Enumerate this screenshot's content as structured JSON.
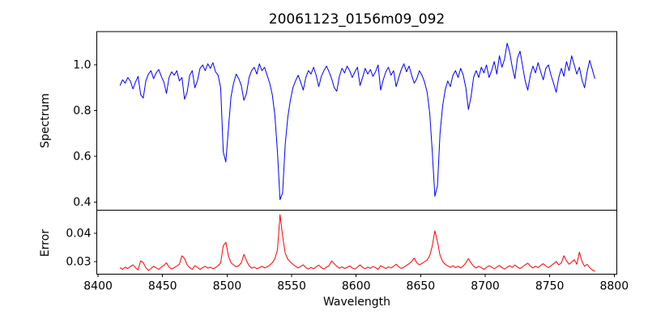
{
  "chart_data": {
    "type": "line",
    "title": "20061123_0156m09_092",
    "xlabel": "Wavelength",
    "grid": false,
    "legend": "none",
    "x_start": 8417,
    "x_step": 2,
    "xlim": [
      8399,
      8802
    ],
    "xticks": [
      8400,
      8450,
      8500,
      8550,
      8600,
      8650,
      8700,
      8750,
      8800
    ],
    "absorption_line_centers": [
      8498,
      8542,
      8662
    ],
    "panels": [
      {
        "name": "spectrum",
        "ylabel": "Spectrum",
        "color": "#0000ff",
        "ylim": [
          0.364,
          1.146
        ],
        "yticks": [
          "0.4",
          "0.6",
          "0.8",
          "1.0"
        ],
        "values": [
          0.91,
          0.935,
          0.92,
          0.945,
          0.93,
          0.895,
          0.925,
          0.95,
          0.87,
          0.855,
          0.93,
          0.96,
          0.975,
          0.94,
          0.965,
          0.98,
          0.95,
          0.925,
          0.875,
          0.945,
          0.97,
          0.955,
          0.975,
          0.93,
          0.945,
          0.85,
          0.88,
          0.955,
          0.975,
          0.9,
          0.93,
          0.985,
          1.0,
          0.975,
          1.005,
          0.985,
          1.01,
          0.97,
          0.955,
          0.9,
          0.62,
          0.575,
          0.72,
          0.86,
          0.92,
          0.96,
          0.94,
          0.91,
          0.845,
          0.875,
          0.945,
          0.975,
          0.99,
          0.96,
          1.005,
          0.975,
          0.99,
          0.955,
          0.92,
          0.87,
          0.78,
          0.62,
          0.41,
          0.44,
          0.65,
          0.77,
          0.845,
          0.9,
          0.93,
          0.955,
          0.925,
          0.89,
          0.945,
          0.975,
          0.96,
          0.99,
          0.955,
          0.905,
          0.95,
          0.975,
          0.995,
          0.97,
          0.94,
          0.9,
          0.885,
          0.95,
          0.985,
          0.965,
          0.995,
          0.975,
          0.945,
          0.97,
          0.99,
          0.91,
          0.945,
          0.985,
          0.96,
          0.98,
          0.95,
          0.97,
          1.0,
          0.89,
          0.935,
          0.97,
          0.99,
          0.955,
          0.975,
          0.905,
          0.945,
          0.98,
          1.005,
          0.97,
          0.995,
          0.955,
          0.92,
          0.94,
          0.975,
          0.955,
          0.925,
          0.88,
          0.79,
          0.62,
          0.425,
          0.47,
          0.7,
          0.82,
          0.89,
          0.93,
          0.905,
          0.955,
          0.975,
          0.945,
          0.985,
          0.955,
          0.9,
          0.805,
          0.86,
          0.945,
          0.975,
          0.945,
          0.99,
          0.965,
          1.0,
          0.945,
          0.975,
          1.015,
          0.96,
          1.04,
          0.99,
          1.025,
          1.095,
          1.055,
          0.99,
          0.94,
          1.03,
          1.06,
          0.995,
          0.93,
          0.89,
          0.955,
          0.995,
          0.965,
          1.01,
          0.97,
          0.935,
          0.985,
          1.0,
          0.955,
          0.92,
          0.88,
          0.945,
          0.985,
          0.95,
          1.015,
          0.975,
          1.04,
          1.0,
          0.96,
          0.99,
          0.935,
          0.9,
          0.97,
          1.02,
          0.98,
          0.94
        ]
      },
      {
        "name": "error",
        "ylabel": "Error",
        "color": "#ff0000",
        "ylim": [
          0.0255,
          0.0481
        ],
        "yticks": [
          "0.03",
          "0.04"
        ],
        "values": [
          0.0278,
          0.0272,
          0.028,
          0.0275,
          0.0282,
          0.0288,
          0.0278,
          0.027,
          0.0302,
          0.0296,
          0.0278,
          0.0268,
          0.0275,
          0.0283,
          0.0277,
          0.0272,
          0.028,
          0.0286,
          0.0295,
          0.028,
          0.0273,
          0.0278,
          0.0284,
          0.029,
          0.032,
          0.031,
          0.0288,
          0.0278,
          0.0272,
          0.0285,
          0.0279,
          0.0272,
          0.0278,
          0.0283,
          0.0276,
          0.028,
          0.0274,
          0.0278,
          0.0285,
          0.0295,
          0.0355,
          0.0368,
          0.032,
          0.0295,
          0.0288,
          0.0281,
          0.0285,
          0.0295,
          0.0325,
          0.0303,
          0.0285,
          0.0276,
          0.028,
          0.0274,
          0.0278,
          0.0283,
          0.0277,
          0.0281,
          0.0287,
          0.0295,
          0.031,
          0.034,
          0.0465,
          0.039,
          0.033,
          0.0308,
          0.0298,
          0.029,
          0.0283,
          0.0277,
          0.0282,
          0.0288,
          0.0278,
          0.0273,
          0.0279,
          0.0274,
          0.0281,
          0.0287,
          0.0278,
          0.0273,
          0.028,
          0.0285,
          0.0302,
          0.0292,
          0.0283,
          0.0276,
          0.0281,
          0.0275,
          0.0279,
          0.0284,
          0.0277,
          0.0273,
          0.028,
          0.0288,
          0.0279,
          0.0274,
          0.028,
          0.0276,
          0.0282,
          0.0278,
          0.0272,
          0.0285,
          0.028,
          0.0275,
          0.0281,
          0.0277,
          0.0283,
          0.029,
          0.0281,
          0.0275,
          0.028,
          0.0286,
          0.0292,
          0.03,
          0.0312,
          0.0295,
          0.0288,
          0.0293,
          0.0299,
          0.0305,
          0.032,
          0.0355,
          0.0408,
          0.037,
          0.0322,
          0.03,
          0.029,
          0.0284,
          0.0279,
          0.0285,
          0.0278,
          0.0283,
          0.0277,
          0.0284,
          0.0295,
          0.031,
          0.0295,
          0.0283,
          0.0277,
          0.0283,
          0.0278,
          0.0272,
          0.0279,
          0.0285,
          0.028,
          0.0274,
          0.028,
          0.0286,
          0.0278,
          0.0273,
          0.028,
          0.0285,
          0.0279,
          0.0287,
          0.028,
          0.0275,
          0.0281,
          0.0288,
          0.0294,
          0.0283,
          0.0277,
          0.0283,
          0.0278,
          0.0286,
          0.0292,
          0.0284,
          0.0278,
          0.0285,
          0.0292,
          0.03,
          0.0288,
          0.0295,
          0.032,
          0.0302,
          0.029,
          0.0298,
          0.0306,
          0.029,
          0.0333,
          0.03,
          0.0283,
          0.029,
          0.0278,
          0.027,
          0.0265
        ]
      }
    ],
    "colors": {
      "spectrum_line": "#0000ff",
      "error_line": "#ff0000",
      "spine": "#000000",
      "text": "#000000",
      "background": "#ffffff"
    }
  }
}
